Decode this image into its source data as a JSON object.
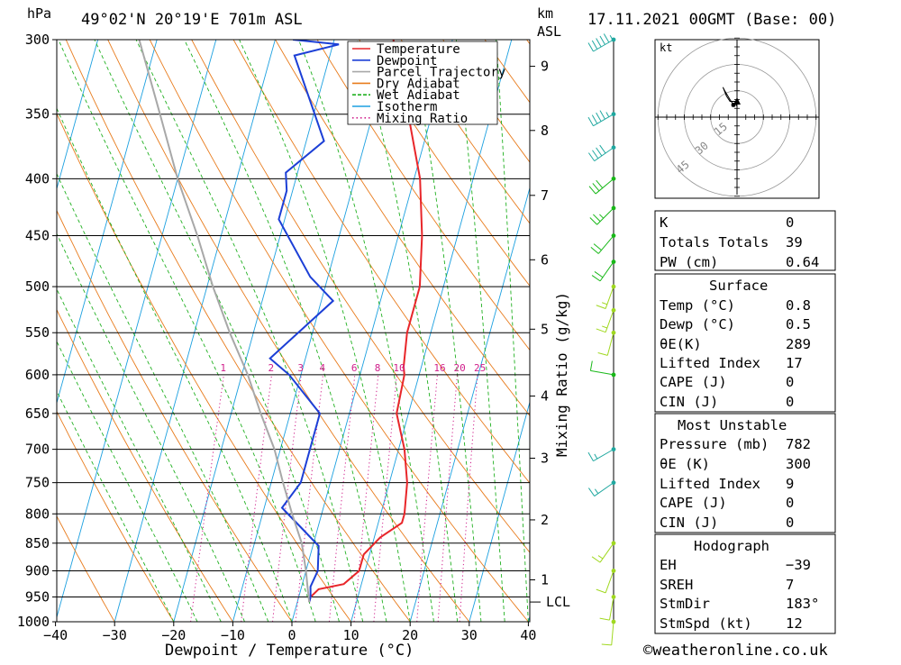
{
  "header": {
    "pressure_unit": "hPa",
    "location": "49°02'N  20°19'E  701m  ASL",
    "height_unit_line1": "km",
    "height_unit_line2": "ASL",
    "datetime": "17.11.2021  00GMT  (Base: 00)"
  },
  "axes": {
    "xlabel": "Dewpoint / Temperature (°C)",
    "x_ticks": [
      -40,
      -30,
      -20,
      -10,
      0,
      10,
      20,
      30,
      40
    ],
    "x_tick_labels": [
      "−40",
      "−30",
      "−20",
      "−10",
      "0",
      "10",
      "20",
      "30",
      "40"
    ],
    "pressure_levels": [
      300,
      350,
      400,
      450,
      500,
      550,
      600,
      650,
      700,
      750,
      800,
      850,
      900,
      950,
      1000
    ],
    "height_ticks": [
      {
        "label": "9",
        "p": 317
      },
      {
        "label": "8",
        "p": 362
      },
      {
        "label": "7",
        "p": 414
      },
      {
        "label": "6",
        "p": 473
      },
      {
        "label": "5",
        "p": 546
      },
      {
        "label": "4",
        "p": 627
      },
      {
        "label": "3",
        "p": 713
      },
      {
        "label": "2",
        "p": 810
      },
      {
        "label": "1",
        "p": 917
      }
    ],
    "lcl_label": "LCL",
    "lcl_p": 960,
    "mixing_ratio_label": "Mixing Ratio (g/kg)"
  },
  "legend": [
    {
      "label": "Temperature",
      "color": "#e8262a",
      "style": "solid"
    },
    {
      "label": "Dewpoint",
      "color": "#1c3fd6",
      "style": "solid"
    },
    {
      "label": "Parcel Trajectory",
      "color": "#a8a8a8",
      "style": "solid"
    },
    {
      "label": "Dry Adiabat",
      "color": "#e87b1c",
      "style": "solid"
    },
    {
      "label": "Wet Adiabat",
      "color": "#20b020",
      "style": "dashed"
    },
    {
      "label": "Isotherm",
      "color": "#1ca0e0",
      "style": "solid"
    },
    {
      "label": "Mixing Ratio",
      "color": "#d0208c",
      "style": "dotted"
    }
  ],
  "mixing_ratio_labels": [
    "1",
    "2",
    "3",
    "4",
    "6",
    "8",
    "10",
    "16",
    "20",
    "25"
  ],
  "chart_data": {
    "type": "line",
    "title": "49°02'N 20°19'E 701m ASL — 17.11.2021 00GMT (Base: 00)",
    "xlabel": "Dewpoint / Temperature (°C)",
    "ylabel": "hPa",
    "xlim": [
      -40,
      40
    ],
    "ylim": [
      1000,
      300
    ],
    "grid": true,
    "legend_position": "top-center",
    "series": [
      {
        "name": "Temperature",
        "color": "#e8262a",
        "points": [
          [
            300,
            -10
          ],
          [
            350,
            -4
          ],
          [
            400,
            1
          ],
          [
            450,
            4
          ],
          [
            500,
            6
          ],
          [
            550,
            6
          ],
          [
            590,
            7
          ],
          [
            600,
            7.5
          ],
          [
            650,
            8
          ],
          [
            700,
            11
          ],
          [
            750,
            13
          ],
          [
            800,
            14
          ],
          [
            815,
            14
          ],
          [
            840,
            11
          ],
          [
            870,
            9
          ],
          [
            900,
            9
          ],
          [
            925,
            7
          ],
          [
            935,
            3
          ],
          [
            950,
            2
          ],
          [
            960,
            2
          ]
        ]
      },
      {
        "name": "Dewpoint",
        "color": "#1c3fd6",
        "points": [
          [
            300,
            -27
          ],
          [
            303,
            -19
          ],
          [
            310,
            -26
          ],
          [
            370,
            -17
          ],
          [
            395,
            -22
          ],
          [
            410,
            -21
          ],
          [
            435,
            -21
          ],
          [
            490,
            -13
          ],
          [
            515,
            -8
          ],
          [
            580,
            -16
          ],
          [
            600,
            -12
          ],
          [
            650,
            -5
          ],
          [
            700,
            -5
          ],
          [
            750,
            -5
          ],
          [
            790,
            -7
          ],
          [
            830,
            -2
          ],
          [
            855,
            1
          ],
          [
            900,
            2
          ],
          [
            930,
            1.5
          ],
          [
            950,
            2
          ],
          [
            960,
            2
          ]
        ]
      },
      {
        "name": "Parcel Trajectory",
        "color": "#a8a8a8",
        "points": [
          [
            960,
            2
          ],
          [
            930,
            1
          ],
          [
            900,
            0
          ],
          [
            850,
            -2
          ],
          [
            800,
            -5
          ],
          [
            750,
            -8
          ],
          [
            700,
            -11
          ],
          [
            650,
            -15
          ],
          [
            600,
            -19
          ],
          [
            550,
            -24
          ],
          [
            500,
            -29
          ],
          [
            450,
            -34
          ],
          [
            400,
            -40
          ],
          [
            350,
            -46
          ],
          [
            300,
            -53
          ]
        ]
      }
    ]
  },
  "hodograph": {
    "unit": "kt",
    "ring_labels": [
      "15",
      "30",
      "45"
    ],
    "points_kt": [
      [
        -3,
        6
      ],
      [
        -2,
        7
      ],
      [
        -4,
        10
      ],
      [
        -7,
        15
      ],
      [
        -8,
        17
      ],
      [
        -6,
        12
      ],
      [
        -4,
        9
      ],
      [
        -3,
        9
      ],
      [
        -2,
        9
      ],
      [
        -1,
        9
      ],
      [
        0,
        6
      ]
    ]
  },
  "wind_barbs": [
    {
      "p": 300,
      "dir": 240,
      "spd": 55,
      "color": "#20a8a0"
    },
    {
      "p": 350,
      "dir": 240,
      "spd": 45,
      "color": "#20a8a0"
    },
    {
      "p": 375,
      "dir": 235,
      "spd": 40,
      "color": "#20a8a0"
    },
    {
      "p": 400,
      "dir": 230,
      "spd": 30,
      "color": "#18b818"
    },
    {
      "p": 425,
      "dir": 225,
      "spd": 25,
      "color": "#18b818"
    },
    {
      "p": 450,
      "dir": 220,
      "spd": 20,
      "color": "#18b818"
    },
    {
      "p": 475,
      "dir": 215,
      "spd": 20,
      "color": "#18b818"
    },
    {
      "p": 500,
      "dir": 200,
      "spd": 15,
      "color": "#a0d820"
    },
    {
      "p": 525,
      "dir": 200,
      "spd": 15,
      "color": "#a0d820"
    },
    {
      "p": 550,
      "dir": 195,
      "spd": 10,
      "color": "#a0d820"
    },
    {
      "p": 600,
      "dir": 280,
      "spd": 10,
      "color": "#18b818"
    },
    {
      "p": 700,
      "dir": 240,
      "spd": 15,
      "color": "#20a8a0"
    },
    {
      "p": 750,
      "dir": 235,
      "spd": 15,
      "color": "#20a8a0"
    },
    {
      "p": 850,
      "dir": 215,
      "spd": 15,
      "color": "#a0d820"
    },
    {
      "p": 900,
      "dir": 200,
      "spd": 10,
      "color": "#a0d820"
    },
    {
      "p": 950,
      "dir": 190,
      "spd": 10,
      "color": "#a0d820"
    },
    {
      "p": 1000,
      "dir": 185,
      "spd": 10,
      "color": "#a0d820"
    }
  ],
  "indices": {
    "k_label": "K",
    "k_value": "0",
    "tt_label": "Totals Totals",
    "tt_value": "39",
    "pw_label": "PW (cm)",
    "pw_value": "0.64",
    "surface": {
      "title": "Surface",
      "temp_label": "Temp (°C)",
      "temp_value": "0.8",
      "dewp_label": "Dewp (°C)",
      "dewp_value": "0.5",
      "theta_e_label": "θE(K)",
      "theta_e_value": "289",
      "li_label": "Lifted Index",
      "li_value": "17",
      "cape_label": "CAPE (J)",
      "cape_value": "0",
      "cin_label": "CIN (J)",
      "cin_value": "0"
    },
    "most_unstable": {
      "title": "Most Unstable",
      "pressure_label": "Pressure (mb)",
      "pressure_value": "782",
      "theta_e_label": "θE (K)",
      "theta_e_value": "300",
      "li_label": "Lifted Index",
      "li_value": "9",
      "cape_label": "CAPE (J)",
      "cape_value": "0",
      "cin_label": "CIN (J)",
      "cin_value": "0"
    },
    "hodograph": {
      "title": "Hodograph",
      "eh_label": "EH",
      "eh_value": "−39",
      "sreh_label": "SREH",
      "sreh_value": "7",
      "stmdir_label": "StmDir",
      "stmdir_value": "183°",
      "stmspd_label": "StmSpd (kt)",
      "stmspd_value": "12"
    }
  },
  "footer": {
    "copyright": "©weatheronline.co.uk"
  }
}
